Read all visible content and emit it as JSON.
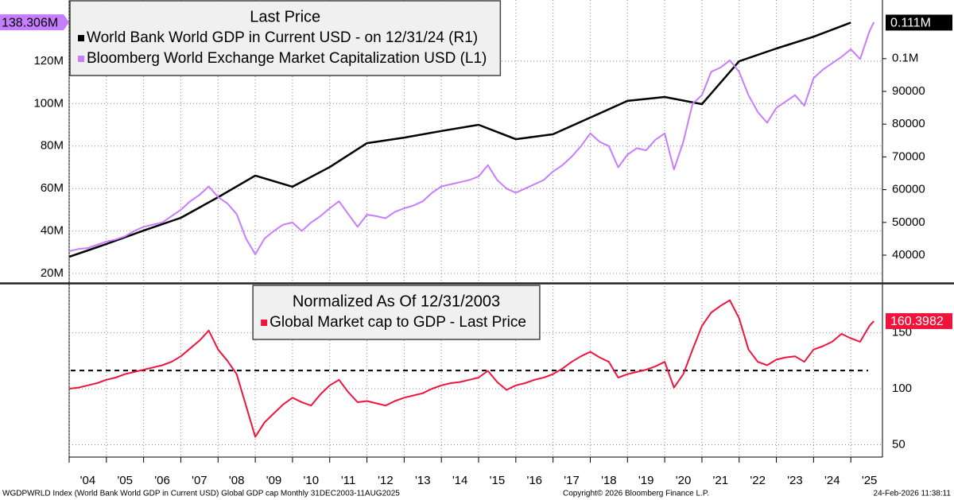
{
  "chart_data": [
    {
      "type": "line",
      "title": "Last Price",
      "legend": "upper left",
      "grid": true,
      "xlim": [
        2004,
        2025.85
      ],
      "ylim": [
        15.9,
        148.8
      ],
      "yticks": [
        {
          "value": 20,
          "label": "20M"
        },
        {
          "value": 40,
          "label": "40M"
        },
        {
          "value": 60,
          "label": "60M"
        },
        {
          "value": 80,
          "label": "80M"
        },
        {
          "value": 100,
          "label": "100M"
        },
        {
          "value": 120,
          "label": "120M"
        }
      ],
      "y2lim": [
        31750,
        117900
      ],
      "y2ticks": [
        40000,
        50000,
        60000,
        70000,
        80000,
        90000,
        {
          "value": 100000,
          "label": "0.1M"
        }
      ],
      "series": [
        {
          "name": "World Bank World GDP in Current USD -  on 12/31/24  (R1)",
          "color": "#000000",
          "axis": "y2",
          "x": [
            2004,
            2005,
            2006,
            2007,
            2008,
            2009,
            2010,
            2011,
            2012,
            2013,
            2014,
            2015,
            2016,
            2017,
            2018,
            2019,
            2020,
            2021,
            2022,
            2023,
            2024,
            2025
          ],
          "values": [
            39500,
            43400,
            47500,
            51400,
            57700,
            64300,
            60900,
            66900,
            74200,
            75900,
            77900,
            79800,
            75400,
            76900,
            82000,
            87100,
            88300,
            86100,
            99200,
            103100,
            106700,
            111000
          ],
          "value_labels": [
            null,
            null,
            null,
            null,
            null,
            null,
            null,
            null,
            null,
            null,
            null,
            null,
            null,
            null,
            null,
            null,
            null,
            null,
            null,
            null,
            null,
            "0.111M"
          ]
        },
        {
          "name": "Bloomberg World Exchange Market Capitalization USD  (L1)",
          "color": "#c77dff",
          "x": [
            2004,
            2004.25,
            2004.5,
            2004.75,
            2005,
            2005.25,
            2005.5,
            2005.75,
            2006,
            2006.25,
            2006.5,
            2006.75,
            2007,
            2007.25,
            2007.5,
            2007.75,
            2008,
            2008.25,
            2008.5,
            2008.75,
            2009,
            2009.25,
            2009.5,
            2009.75,
            2010,
            2010.25,
            2010.5,
            2010.75,
            2011,
            2011.25,
            2011.5,
            2011.75,
            2012,
            2012.25,
            2012.5,
            2012.75,
            2013,
            2013.25,
            2013.5,
            2013.75,
            2014,
            2014.25,
            2014.5,
            2014.75,
            2015,
            2015.25,
            2015.5,
            2015.75,
            2016,
            2016.25,
            2016.5,
            2016.75,
            2017,
            2017.25,
            2017.5,
            2017.75,
            2018,
            2018.25,
            2018.5,
            2018.75,
            2019,
            2019.25,
            2019.5,
            2019.75,
            2020,
            2020.25,
            2020.5,
            2020.75,
            2021,
            2021.25,
            2021.5,
            2021.75,
            2022,
            2022.25,
            2022.5,
            2022.75,
            2023,
            2023.25,
            2023.5,
            2023.75,
            2024,
            2024.25,
            2024.5,
            2024.75,
            2025,
            2025.25,
            2025.5,
            2025.62
          ],
          "values": [
            30.5,
            31.5,
            32,
            33.5,
            35,
            36,
            37.5,
            40,
            42,
            43,
            44,
            47,
            50,
            54,
            57,
            61,
            56,
            53,
            48,
            36.5,
            29,
            36.5,
            40,
            43,
            44,
            40,
            44,
            47,
            50.7,
            54,
            48,
            42,
            47.7,
            47,
            46,
            49,
            50.7,
            52,
            54,
            58,
            61,
            62,
            63,
            64,
            65.7,
            71,
            64,
            60,
            58,
            60,
            62,
            64,
            68,
            71,
            75,
            80,
            86,
            82,
            80,
            70,
            76,
            79,
            78,
            83,
            86,
            69,
            82,
            100,
            104,
            115,
            117,
            120.4,
            115,
            104,
            96,
            91,
            98,
            101,
            104,
            99,
            112,
            116,
            119,
            122,
            125.6,
            121,
            134,
            138.306
          ],
          "value_labels": [
            null,
            null,
            null,
            null,
            null,
            null,
            null,
            null,
            null,
            null,
            null,
            null,
            null,
            null,
            null,
            null,
            null,
            null,
            null,
            null,
            null,
            null,
            null,
            null,
            null,
            null,
            null,
            null,
            null,
            null,
            null,
            null,
            null,
            null,
            null,
            null,
            null,
            null,
            null,
            null,
            null,
            null,
            null,
            null,
            null,
            null,
            null,
            null,
            null,
            null,
            null,
            null,
            null,
            null,
            null,
            null,
            null,
            null,
            null,
            null,
            null,
            null,
            null,
            null,
            null,
            null,
            null,
            null,
            null,
            null,
            null,
            null,
            null,
            null,
            null,
            null,
            null,
            null,
            null,
            null,
            null,
            null,
            null,
            null,
            null,
            null,
            null,
            "138.306M"
          ]
        }
      ]
    },
    {
      "type": "line",
      "title": "Normalized As Of 12/31/2003",
      "legend": "upper center",
      "grid": true,
      "xlim": [
        2004,
        2025.85
      ],
      "xticks": [
        {
          "value": 2004,
          "label": "'04"
        },
        {
          "value": 2005,
          "label": "'05"
        },
        {
          "value": 2006,
          "label": "'06"
        },
        {
          "value": 2007,
          "label": "'07"
        },
        {
          "value": 2008,
          "label": "'08"
        },
        {
          "value": 2009,
          "label": "'09"
        },
        {
          "value": 2010,
          "label": "'10"
        },
        {
          "value": 2011,
          "label": "'11"
        },
        {
          "value": 2012,
          "label": "'12"
        },
        {
          "value": 2013,
          "label": "'13"
        },
        {
          "value": 2014,
          "label": "'14"
        },
        {
          "value": 2015,
          "label": "'15"
        },
        {
          "value": 2016,
          "label": "'16"
        },
        {
          "value": 2017,
          "label": "'17"
        },
        {
          "value": 2018,
          "label": "'18"
        },
        {
          "value": 2019,
          "label": "'19"
        },
        {
          "value": 2020,
          "label": "'20"
        },
        {
          "value": 2021,
          "label": "'21"
        },
        {
          "value": 2022,
          "label": "'22"
        },
        {
          "value": 2023,
          "label": "'23"
        },
        {
          "value": 2024,
          "label": "'24"
        },
        {
          "value": 2025,
          "label": "'25"
        }
      ],
      "ylim": [
        39,
        193
      ],
      "yticks": [
        50,
        100,
        150
      ],
      "hline": {
        "value": 116.3,
        "style": "dashed",
        "color": "#000000"
      },
      "series": [
        {
          "name": "Global Market cap to GDP - Last Price",
          "color": "#f0143c",
          "x": [
            2004,
            2004.25,
            2004.5,
            2004.75,
            2005,
            2005.25,
            2005.5,
            2005.75,
            2006,
            2006.25,
            2006.5,
            2006.75,
            2007,
            2007.25,
            2007.5,
            2007.75,
            2008,
            2008.25,
            2008.5,
            2008.75,
            2009,
            2009.25,
            2009.5,
            2009.75,
            2010,
            2010.25,
            2010.5,
            2010.75,
            2011,
            2011.25,
            2011.5,
            2011.75,
            2012,
            2012.25,
            2012.5,
            2012.75,
            2013,
            2013.25,
            2013.5,
            2013.75,
            2014,
            2014.25,
            2014.5,
            2014.75,
            2015,
            2015.25,
            2015.5,
            2015.75,
            2016,
            2016.25,
            2016.5,
            2016.75,
            2017,
            2017.25,
            2017.5,
            2017.75,
            2018,
            2018.25,
            2018.5,
            2018.75,
            2019,
            2019.25,
            2019.5,
            2019.75,
            2020,
            2020.25,
            2020.5,
            2020.75,
            2021,
            2021.25,
            2021.5,
            2021.75,
            2022,
            2022.25,
            2022.5,
            2022.75,
            2023,
            2023.25,
            2023.5,
            2023.75,
            2024,
            2024.25,
            2024.5,
            2024.75,
            2025,
            2025.25,
            2025.5,
            2025.62
          ],
          "values": [
            100,
            101,
            103,
            105,
            108,
            110,
            113,
            115,
            117,
            119,
            121,
            124,
            129,
            136,
            143,
            152,
            135,
            125,
            113,
            85,
            57,
            70,
            78,
            86,
            92,
            88,
            85,
            95,
            103,
            108,
            97,
            88,
            89,
            87,
            85,
            89,
            92,
            94,
            96,
            100,
            103,
            105,
            106,
            108,
            110,
            116,
            106,
            99,
            103,
            105,
            108,
            110,
            113,
            118,
            124,
            129,
            133,
            128,
            124,
            110,
            113,
            115,
            117,
            120,
            124,
            101,
            113,
            135,
            156,
            168,
            174,
            179,
            163,
            135,
            124,
            121,
            126,
            128,
            129,
            124,
            135,
            138,
            142,
            149,
            145,
            142,
            156,
            160.3982
          ]
        }
      ]
    }
  ],
  "footer": {
    "source": "WGDPWRLD Index (World Bank World GDP in Current USD) Global GDP cap Monthly 31DEC2003-11AUG2025",
    "copyright": "Copyright© 2026 Bloomberg Finance L.P.",
    "timestamp": "24-Feb-2026 11:38:11"
  }
}
